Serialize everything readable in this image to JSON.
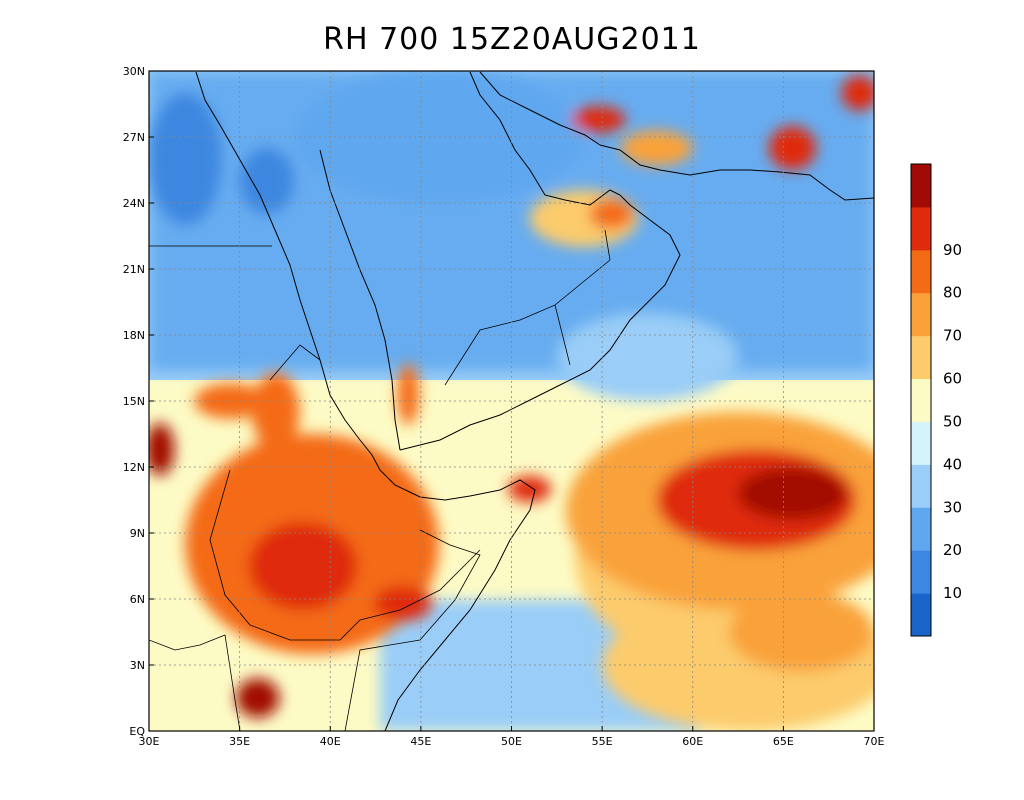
{
  "title": "RH 700 15Z20AUG2011",
  "map": {
    "lon_range": [
      30,
      70
    ],
    "lat_range": [
      0,
      30
    ],
    "x_ticks": [
      {
        "value": 30,
        "label": "30E"
      },
      {
        "value": 35,
        "label": "35E"
      },
      {
        "value": 40,
        "label": "40E"
      },
      {
        "value": 45,
        "label": "45E"
      },
      {
        "value": 50,
        "label": "50E"
      },
      {
        "value": 55,
        "label": "55E"
      },
      {
        "value": 60,
        "label": "60E"
      },
      {
        "value": 65,
        "label": "65E"
      },
      {
        "value": 70,
        "label": "70E"
      }
    ],
    "y_ticks": [
      {
        "value": 0,
        "label": "EQ"
      },
      {
        "value": 3,
        "label": "3N"
      },
      {
        "value": 6,
        "label": "6N"
      },
      {
        "value": 9,
        "label": "9N"
      },
      {
        "value": 12,
        "label": "12N"
      },
      {
        "value": 15,
        "label": "15N"
      },
      {
        "value": 18,
        "label": "18N"
      },
      {
        "value": 21,
        "label": "21N"
      },
      {
        "value": 24,
        "label": "24N"
      },
      {
        "value": 27,
        "label": "27N"
      },
      {
        "value": 30,
        "label": "30N"
      }
    ],
    "grid": "dotted"
  },
  "colorbar": {
    "colors": [
      "#1965c9",
      "#3c87e0",
      "#5fa7ef",
      "#9acdf7",
      "#d4f3fb",
      "#fdfbc5",
      "#fccb6c",
      "#f9a23a",
      "#f46b16",
      "#df2b0c",
      "#a20a06"
    ],
    "labels": [
      "10",
      "20",
      "30",
      "40",
      "50",
      "60",
      "70",
      "80",
      "90"
    ]
  },
  "blobs": [
    {
      "lon": 63.5,
      "lat": 10.5,
      "rlon": 5.5,
      "rlat": 2.3,
      "level": 9
    },
    {
      "lon": 65.5,
      "lat": 10.8,
      "rlon": 3.0,
      "rlat": 1.2,
      "level": 10
    },
    {
      "lon": 62.5,
      "lat": 10.0,
      "rlon": 9.5,
      "rlat": 4.5,
      "level": 7
    },
    {
      "lon": 59.5,
      "lat": 8.0,
      "rlon": 6.0,
      "rlat": 4.5,
      "level": 6
    },
    {
      "lon": 63.0,
      "lat": 3.0,
      "rlon": 8.0,
      "rlat": 3.0,
      "level": 6
    },
    {
      "lon": 66.0,
      "lat": 4.5,
      "rlon": 4.0,
      "rlat": 1.8,
      "level": 7
    },
    {
      "lon": 39.0,
      "lat": 8.5,
      "rlon": 7.0,
      "rlat": 5.0,
      "level": 8
    },
    {
      "lon": 38.5,
      "lat": 7.5,
      "rlon": 3.0,
      "rlat": 2.0,
      "level": 9
    },
    {
      "lon": 44.0,
      "lat": 5.8,
      "rlon": 1.6,
      "rlat": 0.8,
      "level": 9
    },
    {
      "lon": 43.0,
      "lat": 9.5,
      "rlon": 2.5,
      "rlat": 1.2,
      "level": 8
    },
    {
      "lon": 51.0,
      "lat": 11.0,
      "rlon": 1.2,
      "rlat": 0.6,
      "level": 9
    },
    {
      "lon": 37.0,
      "lat": 14.5,
      "rlon": 1.3,
      "rlat": 1.8,
      "level": 8
    },
    {
      "lon": 34.5,
      "lat": 15.0,
      "rlon": 2.0,
      "rlat": 0.8,
      "level": 8
    },
    {
      "lon": 30.6,
      "lat": 12.8,
      "rlon": 0.8,
      "rlat": 1.2,
      "level": 10
    },
    {
      "lon": 36.0,
      "lat": 1.5,
      "rlon": 1.2,
      "rlat": 0.9,
      "level": 10
    },
    {
      "lon": 44.3,
      "lat": 15.3,
      "rlon": 0.6,
      "rlat": 1.4,
      "level": 8
    },
    {
      "lon": 54.0,
      "lat": 23.3,
      "rlon": 3.0,
      "rlat": 1.3,
      "level": 6
    },
    {
      "lon": 55.5,
      "lat": 23.5,
      "rlon": 1.2,
      "rlat": 0.7,
      "level": 8
    },
    {
      "lon": 54.8,
      "lat": 27.8,
      "rlon": 1.5,
      "rlat": 0.6,
      "level": 9
    },
    {
      "lon": 65.5,
      "lat": 26.5,
      "rlon": 1.3,
      "rlat": 1.0,
      "level": 9
    },
    {
      "lon": 69.2,
      "lat": 29.0,
      "rlon": 1.0,
      "rlat": 0.8,
      "level": 9
    },
    {
      "lon": 58.0,
      "lat": 26.5,
      "rlon": 2.0,
      "rlat": 0.8,
      "level": 7
    },
    {
      "lon": 32.0,
      "lat": 26.0,
      "rlon": 2.0,
      "rlat": 3.0,
      "level": 1
    },
    {
      "lon": 36.5,
      "lat": 25.0,
      "rlon": 1.5,
      "rlat": 1.5,
      "level": 1
    },
    {
      "lon": 46.0,
      "lat": 27.0,
      "rlon": 8.0,
      "rlat": 3.0,
      "level": 2
    },
    {
      "lon": 57.5,
      "lat": 17.0,
      "rlon": 5.0,
      "rlat": 2.0,
      "level": 3
    }
  ]
}
